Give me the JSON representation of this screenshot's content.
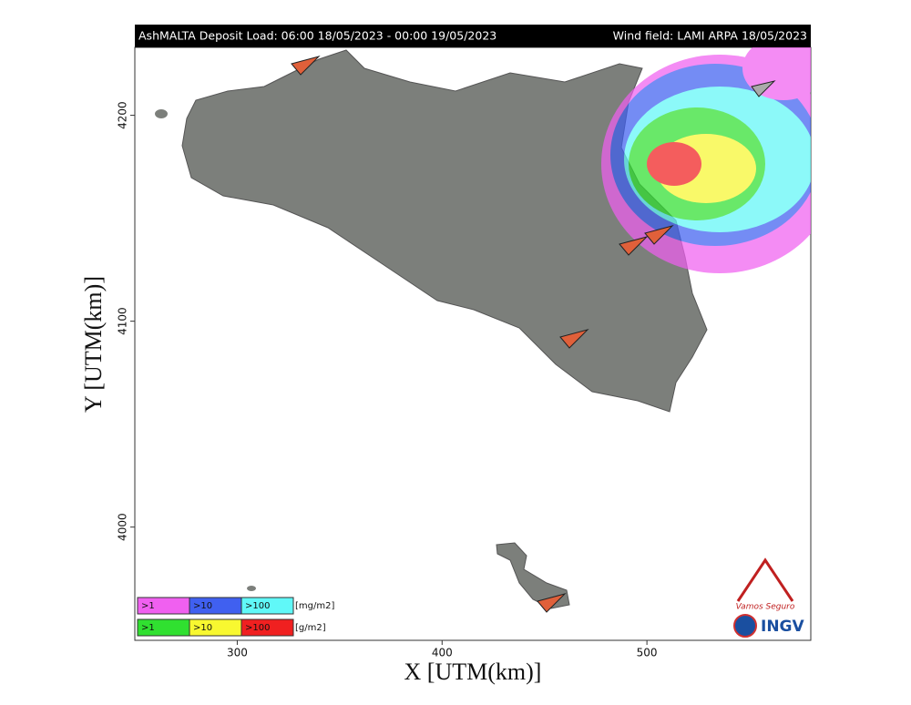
{
  "header": {
    "left": "AshMALTA Deposit Load: 06:00 18/05/2023 - 00:00 19/05/2023",
    "right": "Wind field: LAMI ARPA 18/05/2023"
  },
  "axes": {
    "x": {
      "label": "X [UTM(km)]",
      "lim": [
        250,
        580
      ],
      "ticks": [
        300,
        400,
        500
      ]
    },
    "y": {
      "label": "Y [UTM(km)]",
      "lim": [
        3945,
        4233
      ],
      "ticks": [
        4000,
        4100,
        4200
      ]
    }
  },
  "legend": {
    "rows": [
      {
        "items": [
          {
            "label": ">1",
            "color": "#f060f0"
          },
          {
            "label": ">10",
            "color": "#4060f0"
          },
          {
            "label": ">100",
            "color": "#60f8f8"
          }
        ],
        "unit": "[mg/m2]"
      },
      {
        "items": [
          {
            "label": ">1",
            "color": "#30e030"
          },
          {
            "label": ">10",
            "color": "#f8f830"
          },
          {
            "label": ">100",
            "color": "#f02020"
          }
        ],
        "unit": "[g/m2]"
      }
    ]
  },
  "logos": {
    "vamos": "Vamos Seguro",
    "ingv": "INGV"
  }
}
